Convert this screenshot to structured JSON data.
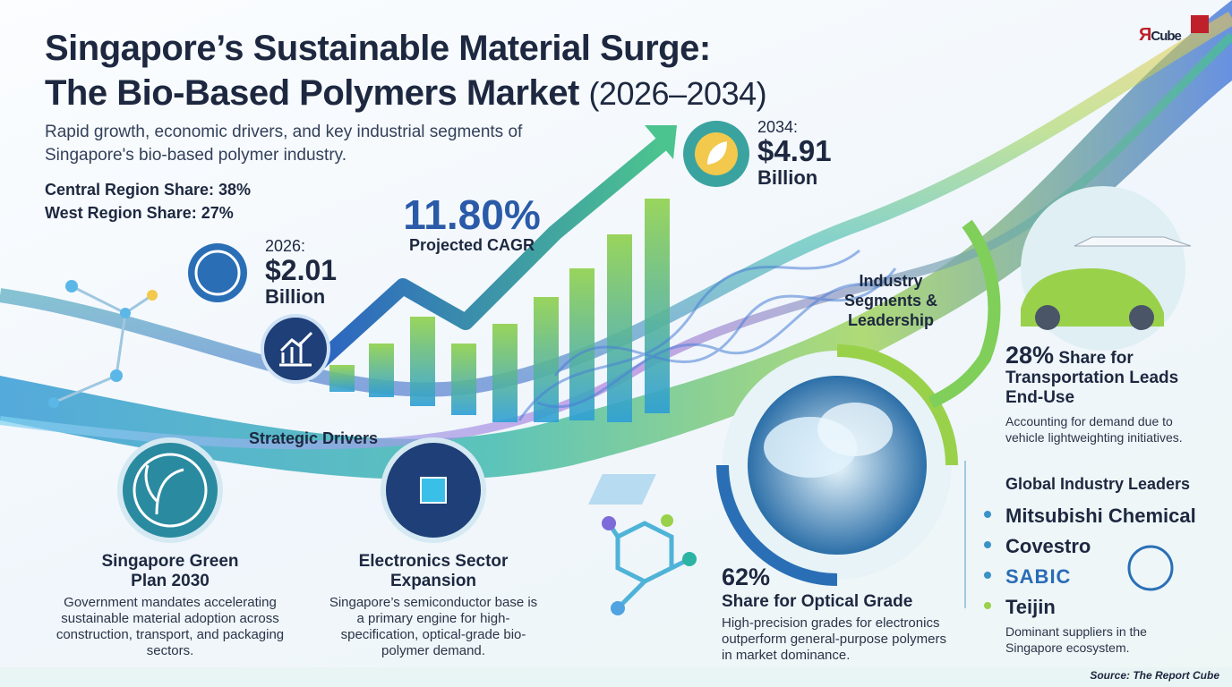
{
  "logo": {
    "mark": "Я",
    "word": "Cube"
  },
  "header": {
    "title_line1": "Singapore’s Sustainable Material Surge:",
    "title_line2": "The Bio-Based Polymers Market",
    "title_years": "(2026–2034)",
    "subtitle": "Rapid growth, economic drivers, and key industrial segments of Singapore's bio-based polymer industry."
  },
  "regions": [
    "Central Region Share: 38%",
    "West Region Share: 27%"
  ],
  "start": {
    "year": "2026:",
    "value": "$2.01",
    "unit": "Billion"
  },
  "cagr": {
    "value": "11.80%",
    "label": "Projected CAGR"
  },
  "end": {
    "year": "2034:",
    "value": "$4.91",
    "unit": "Billion"
  },
  "drivers": {
    "heading": "Strategic Drivers",
    "items": [
      {
        "title": "Singapore Green Plan 2030",
        "text": "Government mandates accelerating sustainable material adoption across construction, transport, and packaging sectors."
      },
      {
        "title": "Electronics Sector Expansion",
        "text": "Singapore’s semiconductor base is a primary engine for high-specification, optical-grade bio-polymer demand."
      }
    ]
  },
  "segments": {
    "heading": "Industry Segments & Leadership",
    "transport": {
      "share": "28%",
      "title": "Share for Transportation Leads End-Use",
      "text": "Accounting for demand due to vehicle lightweighting initiatives."
    },
    "optical": {
      "share": "62%",
      "title": "Share for Optical Grade",
      "text": "High-precision grades for electronics outperform general-purpose polymers in market dominance."
    }
  },
  "leaders": {
    "heading": "Global Industry Leaders",
    "names": [
      "Mitsubishi Chemical",
      "Covestro",
      "SABIC",
      "Teijin"
    ],
    "text": "Dominant suppliers in the Singapore ecosystem."
  },
  "source": "Source: The Report Cube"
}
